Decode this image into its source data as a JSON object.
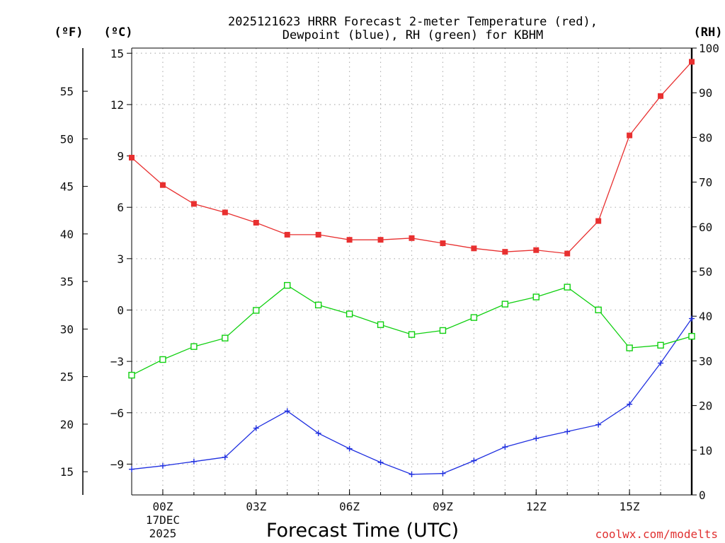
{
  "chart_data": {
    "type": "line",
    "title_line1": "2025121623 HRRR Forecast 2-meter Temperature (red),",
    "title_line2": "Dewpoint (blue), RH (green) for KBHM",
    "unit_left_f": "(ºF)",
    "unit_left_c": "(ºC)",
    "unit_right": "(RH)",
    "xlabel": "Forecast Time (UTC)",
    "credit": "coolwx.com/modelts",
    "x_hours": [
      -1,
      0,
      1,
      2,
      3,
      4,
      5,
      6,
      7,
      8,
      9,
      10,
      11,
      12,
      13,
      14,
      15,
      16,
      17
    ],
    "x_ticks": [
      {
        "hour": 0,
        "label": "00Z",
        "sub1": "17DEC",
        "sub2": "2025"
      },
      {
        "hour": 3,
        "label": "03Z"
      },
      {
        "hour": 6,
        "label": "06Z"
      },
      {
        "hour": 9,
        "label": "09Z"
      },
      {
        "hour": 12,
        "label": "12Z"
      },
      {
        "hour": 15,
        "label": "15Z"
      }
    ],
    "celsius_axis": {
      "min": -10.8,
      "max": 15.3,
      "ticks": [
        15,
        12,
        9,
        6,
        3,
        0,
        -3,
        -6,
        -9
      ],
      "tick_labels": [
        "15",
        "12",
        "9",
        "6",
        "3",
        "0",
        "−3",
        "−6",
        "−9"
      ]
    },
    "fahrenheit_ticks": [
      55,
      50,
      45,
      40,
      35,
      30,
      25,
      20,
      15
    ],
    "rh_axis": {
      "min": 0,
      "max": 100,
      "ticks": [
        100,
        90,
        80,
        70,
        60,
        50,
        40,
        30,
        20,
        10,
        0
      ]
    },
    "series": [
      {
        "name": "Temperature",
        "unit": "C",
        "color": "#e83030",
        "marker": "filled-square",
        "values": [
          8.9,
          7.3,
          6.2,
          5.7,
          5.1,
          4.4,
          4.4,
          4.1,
          4.1,
          4.2,
          3.9,
          3.6,
          3.4,
          3.5,
          3.3,
          5.2,
          10.2,
          12.5,
          14.5
        ]
      },
      {
        "name": "Dewpoint",
        "unit": "C",
        "color": "#2030e0",
        "marker": "plus",
        "values": [
          -9.3,
          -9.1,
          -8.85,
          -8.6,
          -6.9,
          -5.9,
          -7.2,
          -8.1,
          -8.9,
          -9.6,
          -9.55,
          -8.8,
          -8.0,
          -7.5,
          -7.1,
          -6.7,
          -5.5,
          -3.1,
          -0.5
        ]
      },
      {
        "name": "RH",
        "unit": "%",
        "color": "#10d010",
        "marker": "open-square",
        "values": [
          26.8,
          30.3,
          33.2,
          35.1,
          41.3,
          46.9,
          42.5,
          40.5,
          38.1,
          35.9,
          36.8,
          39.7,
          42.7,
          44.3,
          46.5,
          41.4,
          32.9,
          33.5,
          35.5
        ]
      }
    ]
  }
}
